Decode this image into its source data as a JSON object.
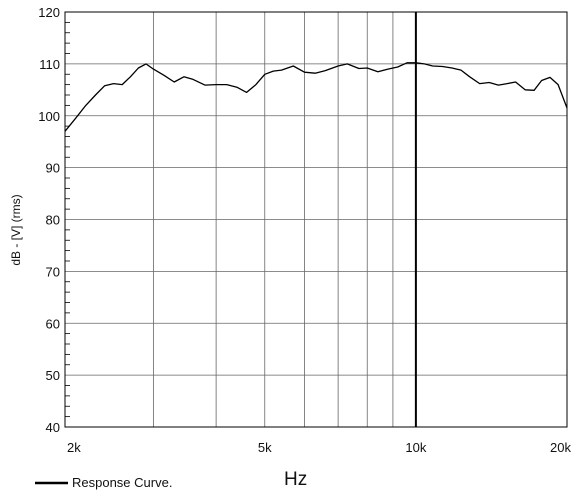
{
  "chart_data": {
    "type": "line",
    "title": "",
    "xlabel": "Hz",
    "ylabel": "dB - [V]  (rms)",
    "x_scale": "log",
    "xlim": [
      2000,
      20000
    ],
    "ylim": [
      40,
      120
    ],
    "grid": true,
    "y_ticks": [
      40,
      50,
      60,
      70,
      80,
      90,
      100,
      110,
      120
    ],
    "x_gridlines": [
      2000,
      3000,
      4000,
      5000,
      6000,
      7000,
      8000,
      9000,
      10000,
      20000
    ],
    "x_tick_labels": [
      {
        "value": 2000,
        "label": "2k"
      },
      {
        "value": 5000,
        "label": "5k"
      },
      {
        "value": 10000,
        "label": "10k"
      },
      {
        "value": 20000,
        "label": "20k"
      }
    ],
    "legend": {
      "position": "bottom-left",
      "entries": [
        "Response Curve."
      ]
    },
    "series": [
      {
        "name": "Response Curve.",
        "color": "#000000",
        "x": [
          2000,
          2100,
          2200,
          2300,
          2400,
          2500,
          2600,
          2700,
          2800,
          2900,
          3000,
          3150,
          3300,
          3450,
          3600,
          3800,
          4000,
          4200,
          4400,
          4600,
          4800,
          5000,
          5200,
          5400,
          5700,
          6000,
          6300,
          6600,
          7000,
          7300,
          7700,
          8000,
          8400,
          8800,
          9200,
          9600,
          10000,
          10400,
          10800,
          11300,
          11800,
          12300,
          12800,
          13400,
          14000,
          14600,
          15200,
          15800,
          16500,
          17200,
          17800,
          18500,
          19200,
          20000
        ],
        "values": [
          97,
          99.5,
          102,
          104,
          105.8,
          106.2,
          106,
          107.5,
          109.2,
          110,
          109,
          107.8,
          106.5,
          107.5,
          107,
          105.9,
          106,
          106,
          105.5,
          104.5,
          106,
          108,
          108.6,
          108.8,
          109.6,
          108.4,
          108.2,
          108.7,
          109.6,
          110,
          109.1,
          109.2,
          108.5,
          109,
          109.4,
          110.2,
          110.2,
          110,
          109.6,
          109.5,
          109.2,
          108.8,
          107.5,
          106.2,
          106.4,
          105.9,
          106.2,
          106.5,
          105,
          104.9,
          106.8,
          107.4,
          106,
          101.5
        ]
      }
    ]
  }
}
